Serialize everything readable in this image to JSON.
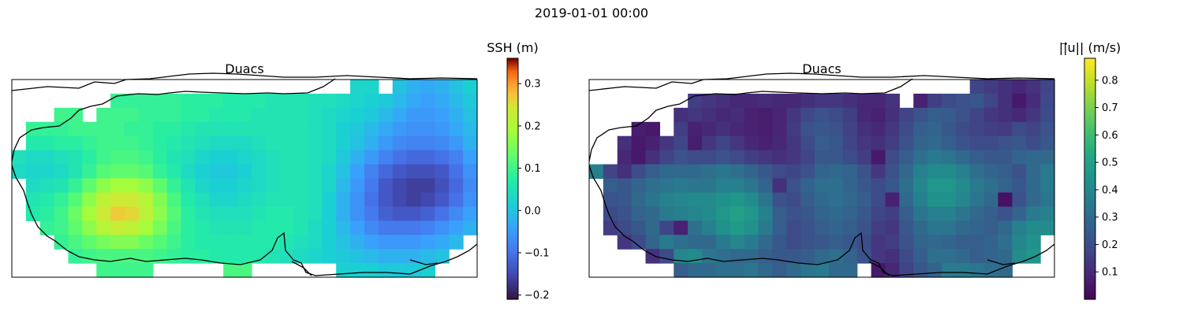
{
  "suptitle": "2019-01-01 00:00",
  "chart_data": [
    {
      "type": "heatmap",
      "title": "Duacs",
      "variable": "SSH",
      "colorbar_label": "SSH (m)",
      "colormap": "turbo",
      "vmin": -0.21,
      "vmax": 0.36,
      "colorbar_ticks": [
        "0.3",
        "0.2",
        "0.1",
        "0.0",
        "−0.1",
        "−0.2"
      ],
      "colorbar_tick_values": [
        0.3,
        0.2,
        0.1,
        0.0,
        -0.1,
        -0.2
      ],
      "grid_shape": [
        14,
        33
      ],
      "values": [
        [
          null,
          null,
          null,
          null,
          null,
          null,
          null,
          null,
          null,
          null,
          null,
          null,
          null,
          null,
          null,
          null,
          null,
          null,
          null,
          null,
          null,
          null,
          null,
          null,
          0.03,
          0.03,
          null,
          0.0,
          -0.02,
          -0.03,
          -0.02,
          0.0,
          0.02
        ],
        [
          null,
          null,
          null,
          null,
          null,
          null,
          null,
          0.09,
          0.09,
          0.09,
          0.09,
          0.09,
          0.08,
          0.08,
          0.08,
          0.07,
          0.07,
          0.07,
          0.06,
          0.06,
          0.06,
          0.05,
          0.05,
          0.04,
          0.03,
          0.02,
          0.01,
          -0.01,
          -0.03,
          -0.04,
          -0.03,
          -0.01,
          0.01
        ],
        [
          null,
          null,
          null,
          0.1,
          0.1,
          null,
          0.1,
          0.1,
          0.1,
          0.09,
          0.09,
          0.09,
          0.08,
          0.08,
          0.07,
          0.07,
          0.07,
          0.06,
          0.06,
          0.06,
          0.06,
          0.05,
          0.04,
          0.03,
          0.02,
          0.01,
          -0.01,
          -0.03,
          -0.05,
          -0.05,
          -0.04,
          -0.02,
          0.0
        ],
        [
          null,
          0.09,
          0.09,
          0.09,
          0.1,
          0.1,
          0.1,
          0.1,
          0.09,
          0.09,
          0.08,
          0.08,
          0.07,
          0.06,
          0.06,
          0.06,
          0.06,
          0.06,
          0.06,
          0.06,
          0.06,
          0.05,
          0.04,
          0.02,
          0.01,
          -0.01,
          -0.03,
          -0.05,
          -0.06,
          -0.06,
          -0.05,
          -0.03,
          -0.01
        ],
        [
          null,
          0.07,
          0.07,
          0.08,
          0.08,
          0.09,
          0.1,
          0.1,
          0.1,
          0.09,
          0.08,
          0.07,
          0.06,
          0.05,
          0.04,
          0.04,
          0.04,
          0.05,
          0.06,
          0.06,
          0.06,
          0.05,
          0.04,
          0.02,
          0.0,
          -0.02,
          -0.05,
          -0.07,
          -0.08,
          -0.08,
          -0.07,
          -0.05,
          -0.02
        ],
        [
          0.05,
          0.04,
          0.04,
          0.05,
          0.06,
          0.08,
          0.1,
          0.11,
          0.11,
          0.1,
          0.08,
          0.06,
          0.05,
          0.03,
          0.02,
          0.02,
          0.03,
          0.04,
          0.05,
          0.06,
          0.06,
          0.05,
          0.04,
          0.01,
          -0.02,
          -0.05,
          -0.08,
          -0.1,
          -0.11,
          -0.11,
          -0.1,
          -0.08,
          -0.04
        ],
        [
          0.04,
          0.03,
          0.03,
          0.04,
          0.06,
          0.09,
          0.12,
          0.13,
          0.13,
          0.12,
          0.09,
          0.07,
          0.04,
          0.02,
          0.01,
          0.01,
          0.02,
          0.04,
          0.05,
          0.06,
          0.06,
          0.05,
          0.03,
          0.0,
          -0.04,
          -0.08,
          -0.11,
          -0.13,
          -0.14,
          -0.14,
          -0.13,
          -0.1,
          -0.06
        ],
        [
          null,
          0.04,
          0.05,
          0.06,
          0.09,
          0.13,
          0.17,
          0.19,
          0.19,
          0.17,
          0.13,
          0.09,
          0.06,
          0.03,
          0.02,
          0.02,
          0.03,
          0.04,
          0.05,
          0.06,
          0.06,
          0.05,
          0.03,
          -0.01,
          -0.05,
          -0.09,
          -0.13,
          -0.15,
          -0.16,
          -0.16,
          -0.14,
          -0.11,
          -0.07
        ],
        [
          null,
          0.06,
          0.07,
          0.09,
          0.12,
          0.17,
          0.22,
          0.24,
          0.24,
          0.21,
          0.16,
          0.11,
          0.07,
          0.05,
          0.03,
          0.03,
          0.04,
          0.05,
          0.06,
          0.06,
          0.06,
          0.05,
          0.02,
          -0.02,
          -0.06,
          -0.1,
          -0.13,
          -0.15,
          -0.16,
          -0.15,
          -0.13,
          -0.1,
          -0.06
        ],
        [
          null,
          0.07,
          0.08,
          0.1,
          0.14,
          0.19,
          0.24,
          0.27,
          0.26,
          0.22,
          0.17,
          0.12,
          0.08,
          0.06,
          0.05,
          0.05,
          0.05,
          0.06,
          0.07,
          0.07,
          0.06,
          0.05,
          0.02,
          -0.02,
          -0.06,
          -0.09,
          -0.12,
          -0.13,
          -0.13,
          -0.12,
          -0.1,
          -0.07,
          -0.04
        ],
        [
          null,
          null,
          0.09,
          0.1,
          0.13,
          0.17,
          0.21,
          0.23,
          0.22,
          0.19,
          0.15,
          0.11,
          0.08,
          0.07,
          0.06,
          0.06,
          0.06,
          0.07,
          0.07,
          0.07,
          0.06,
          0.04,
          0.02,
          -0.01,
          -0.04,
          -0.07,
          -0.09,
          -0.09,
          -0.09,
          -0.08,
          -0.06,
          -0.04,
          -0.02
        ],
        [
          null,
          null,
          null,
          0.09,
          0.11,
          0.13,
          0.15,
          0.16,
          0.16,
          0.14,
          0.12,
          0.1,
          0.08,
          0.07,
          0.07,
          0.07,
          0.07,
          0.07,
          0.07,
          0.06,
          0.05,
          0.04,
          0.02,
          0.0,
          -0.02,
          -0.04,
          -0.05,
          -0.05,
          -0.05,
          -0.04,
          -0.03,
          -0.01,
          null
        ],
        [
          null,
          null,
          null,
          null,
          0.09,
          0.1,
          0.11,
          0.11,
          0.11,
          0.11,
          0.1,
          0.09,
          0.08,
          0.08,
          0.07,
          0.07,
          0.07,
          0.07,
          0.06,
          0.05,
          0.04,
          0.03,
          0.02,
          0.01,
          0.0,
          -0.01,
          -0.02,
          -0.02,
          -0.02,
          -0.01,
          0.0,
          null,
          null
        ],
        [
          null,
          null,
          null,
          null,
          null,
          null,
          0.1,
          0.1,
          0.1,
          0.1,
          null,
          null,
          null,
          null,
          null,
          0.11,
          0.11,
          null,
          null,
          null,
          null,
          null,
          null,
          0.02,
          0.02,
          0.02,
          0.01,
          0.01,
          0.01,
          0.02,
          null,
          null,
          null
        ]
      ]
    },
    {
      "type": "heatmap",
      "title": "Duacs",
      "variable": "||u|| current speed",
      "colorbar_label": "||⃗u|| (m/s)",
      "colormap": "viridis",
      "vmin": 0.0,
      "vmax": 0.88,
      "colorbar_ticks": [
        "0.8",
        "0.7",
        "0.6",
        "0.5",
        "0.4",
        "0.3",
        "0.2",
        "0.1"
      ],
      "colorbar_tick_values": [
        0.8,
        0.7,
        0.6,
        0.5,
        0.4,
        0.3,
        0.2,
        0.1
      ],
      "grid_shape": [
        14,
        33
      ],
      "values": [
        [
          null,
          null,
          null,
          null,
          null,
          null,
          null,
          null,
          null,
          null,
          null,
          null,
          null,
          null,
          null,
          null,
          null,
          null,
          null,
          null,
          null,
          null,
          null,
          null,
          null,
          null,
          null,
          0.18,
          0.15,
          0.12,
          0.1,
          0.13,
          0.18
        ],
        [
          null,
          null,
          null,
          null,
          null,
          null,
          null,
          0.16,
          0.14,
          0.12,
          0.1,
          0.1,
          0.11,
          0.1,
          0.1,
          0.12,
          0.14,
          0.14,
          0.12,
          0.1,
          0.1,
          0.13,
          null,
          0.08,
          0.16,
          0.2,
          0.22,
          0.24,
          0.18,
          0.12,
          0.06,
          0.11,
          0.19
        ],
        [
          null,
          null,
          null,
          null,
          null,
          null,
          0.12,
          0.14,
          0.12,
          0.1,
          0.11,
          0.08,
          0.07,
          0.09,
          0.14,
          0.19,
          0.22,
          0.2,
          0.16,
          0.1,
          0.08,
          0.12,
          0.18,
          0.22,
          0.26,
          0.25,
          0.22,
          0.18,
          0.14,
          0.12,
          0.1,
          0.14,
          0.2
        ],
        [
          null,
          null,
          null,
          0.07,
          0.06,
          null,
          0.16,
          0.08,
          0.1,
          0.12,
          0.1,
          0.08,
          0.07,
          0.09,
          0.15,
          0.22,
          0.24,
          0.22,
          0.17,
          0.12,
          0.1,
          0.14,
          0.2,
          0.26,
          0.28,
          0.24,
          0.2,
          0.18,
          0.16,
          0.15,
          0.2,
          0.18,
          0.22
        ],
        [
          null,
          null,
          0.12,
          0.06,
          0.08,
          0.14,
          0.18,
          0.07,
          0.14,
          0.18,
          0.14,
          0.1,
          0.08,
          0.1,
          0.14,
          0.2,
          0.26,
          0.24,
          0.18,
          0.14,
          0.12,
          0.16,
          0.22,
          0.28,
          0.3,
          0.26,
          0.22,
          0.2,
          0.2,
          0.22,
          0.24,
          0.2,
          0.24
        ],
        [
          null,
          null,
          0.1,
          0.06,
          0.12,
          0.18,
          0.22,
          0.2,
          0.2,
          0.22,
          0.2,
          0.16,
          0.14,
          0.12,
          0.14,
          0.18,
          0.24,
          0.24,
          0.2,
          0.16,
          0.06,
          0.2,
          0.26,
          0.32,
          0.36,
          0.34,
          0.3,
          0.26,
          0.24,
          0.24,
          0.28,
          0.3,
          0.3
        ],
        [
          0.38,
          0.18,
          0.12,
          0.2,
          0.26,
          0.3,
          0.3,
          0.3,
          0.32,
          0.34,
          0.32,
          0.28,
          0.24,
          0.2,
          0.18,
          0.22,
          0.28,
          0.3,
          0.28,
          0.22,
          0.14,
          0.22,
          0.3,
          0.38,
          0.42,
          0.42,
          0.38,
          0.32,
          0.28,
          0.26,
          0.22,
          0.3,
          0.36
        ],
        [
          null,
          0.26,
          0.24,
          0.28,
          0.32,
          0.34,
          0.36,
          0.34,
          0.34,
          0.38,
          0.38,
          0.34,
          0.28,
          0.12,
          0.22,
          0.28,
          0.32,
          0.32,
          0.28,
          0.24,
          0.2,
          0.24,
          0.32,
          0.4,
          0.46,
          0.46,
          0.42,
          0.36,
          0.32,
          0.28,
          0.24,
          0.3,
          0.36
        ],
        [
          null,
          0.22,
          0.24,
          0.3,
          0.34,
          0.38,
          0.4,
          0.42,
          0.42,
          0.44,
          0.46,
          0.42,
          0.34,
          0.22,
          0.2,
          0.26,
          0.3,
          0.32,
          0.3,
          0.26,
          0.2,
          0.08,
          0.3,
          0.38,
          0.44,
          0.44,
          0.4,
          0.34,
          0.3,
          0.04,
          0.22,
          0.3,
          0.34
        ],
        [
          null,
          0.2,
          0.22,
          0.28,
          0.3,
          0.36,
          0.38,
          0.4,
          0.42,
          0.46,
          0.5,
          0.46,
          0.38,
          0.26,
          0.22,
          0.24,
          0.28,
          0.3,
          0.28,
          0.24,
          0.18,
          0.16,
          0.26,
          0.34,
          0.38,
          0.38,
          0.34,
          0.3,
          0.26,
          0.22,
          0.28,
          0.36,
          0.38
        ],
        [
          null,
          0.16,
          0.2,
          0.24,
          0.3,
          0.18,
          0.08,
          0.32,
          0.38,
          0.44,
          0.48,
          0.44,
          0.36,
          0.26,
          0.2,
          0.22,
          0.26,
          0.28,
          0.26,
          0.22,
          0.16,
          0.14,
          0.24,
          0.3,
          0.34,
          0.34,
          0.3,
          0.28,
          0.26,
          0.3,
          0.38,
          0.42,
          0.42
        ],
        [
          null,
          null,
          0.14,
          0.2,
          0.28,
          0.36,
          0.32,
          0.3,
          0.3,
          0.36,
          0.4,
          0.36,
          0.3,
          0.24,
          0.2,
          0.22,
          0.24,
          0.26,
          0.24,
          0.2,
          0.14,
          0.16,
          0.22,
          0.28,
          0.3,
          0.28,
          0.26,
          0.26,
          0.28,
          0.32,
          0.4,
          0.44,
          null
        ],
        [
          null,
          null,
          null,
          null,
          0.12,
          0.2,
          0.4,
          0.42,
          0.34,
          0.32,
          0.3,
          0.3,
          0.26,
          0.24,
          0.24,
          0.26,
          0.3,
          0.32,
          0.28,
          0.22,
          0.14,
          0.12,
          0.2,
          0.26,
          0.32,
          0.32,
          0.3,
          0.26,
          0.28,
          0.3,
          0.42,
          0.46,
          null
        ],
        [
          null,
          null,
          null,
          null,
          null,
          null,
          0.26,
          0.3,
          0.3,
          0.32,
          0.32,
          0.34,
          0.3,
          0.26,
          0.3,
          0.34,
          0.36,
          0.3,
          0.3,
          null,
          0.06,
          0.1,
          0.18,
          0.24,
          0.28,
          0.36,
          0.36,
          0.34,
          0.32,
          0.3,
          null,
          null,
          null
        ]
      ]
    }
  ]
}
